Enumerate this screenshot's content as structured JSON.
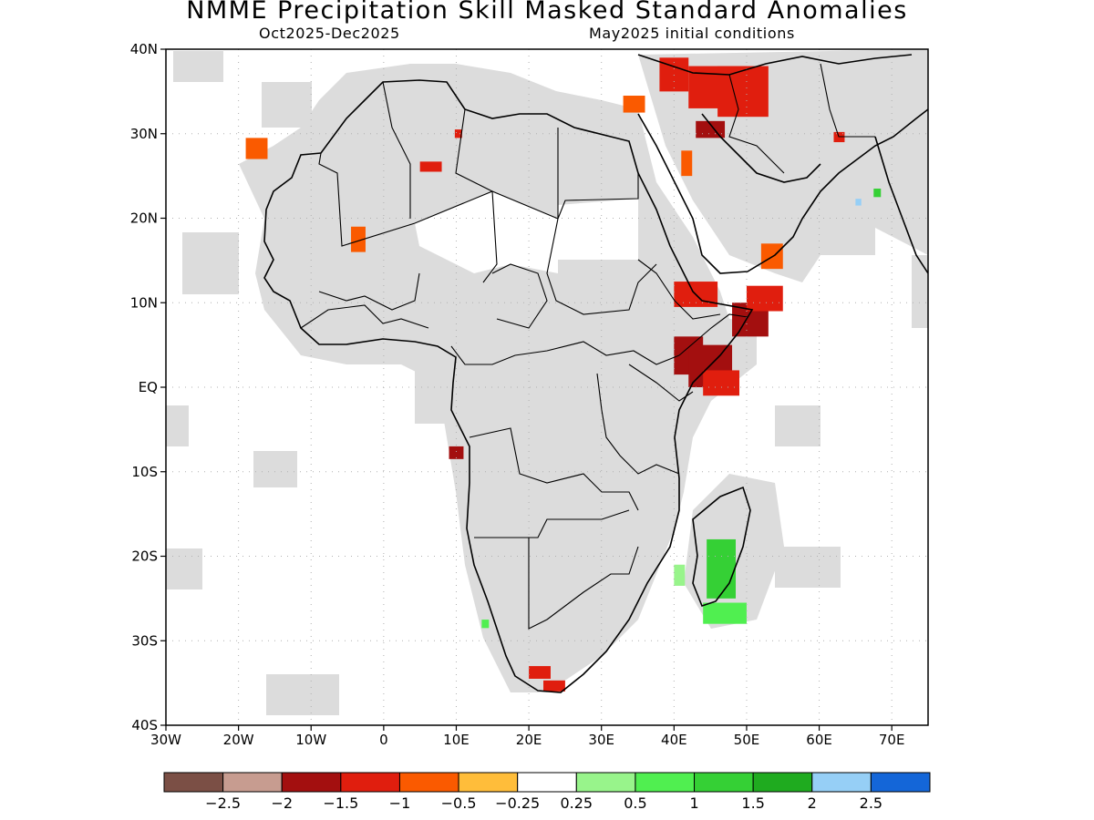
{
  "header": {
    "title": "NMME Precipitation Skill Masked Standard Anomalies",
    "period": "Oct2025-Dec2025",
    "initial_conditions": "May2025 initial conditions"
  },
  "axes": {
    "lon_range": [
      -30,
      75
    ],
    "lat_range": [
      -40,
      40
    ],
    "lon_ticks": [
      {
        "value": -30,
        "label": "30W"
      },
      {
        "value": -20,
        "label": "20W"
      },
      {
        "value": -10,
        "label": "10W"
      },
      {
        "value": 0,
        "label": "0"
      },
      {
        "value": 10,
        "label": "10E"
      },
      {
        "value": 20,
        "label": "20E"
      },
      {
        "value": 30,
        "label": "30E"
      },
      {
        "value": 40,
        "label": "40E"
      },
      {
        "value": 50,
        "label": "50E"
      },
      {
        "value": 60,
        "label": "60E"
      },
      {
        "value": 70,
        "label": "70E"
      }
    ],
    "lat_ticks": [
      {
        "value": 40,
        "label": "40N"
      },
      {
        "value": 30,
        "label": "30N"
      },
      {
        "value": 20,
        "label": "20N"
      },
      {
        "value": 10,
        "label": "10N"
      },
      {
        "value": 0,
        "label": "EQ"
      },
      {
        "value": -10,
        "label": "10S"
      },
      {
        "value": -20,
        "label": "20S"
      },
      {
        "value": -30,
        "label": "30S"
      },
      {
        "value": -40,
        "label": "40S"
      }
    ],
    "grid": true
  },
  "colorbar": {
    "colors": [
      "#7b4f45",
      "#c79c90",
      "#a30f0f",
      "#e01e0e",
      "#fa5a00",
      "#ffbd3a",
      "#ffffff",
      "#98f48b",
      "#50ef50",
      "#35d035",
      "#1fab1f",
      "#96cff6",
      "#1466d8"
    ],
    "labels": [
      "-2.5",
      "-2",
      "-1.5",
      "-1",
      "-0.5",
      "-0.25",
      "0.25",
      "0.5",
      "1",
      "1.5",
      "2",
      "2.5"
    ]
  },
  "map": {
    "land_mask_color": "#dcdcdc",
    "anomaly_patches": [
      {
        "lon": 40,
        "lat": 1.5,
        "w": 4,
        "h": 4.5,
        "value": -1.7
      },
      {
        "lon": 42,
        "lat": 0,
        "w": 6,
        "h": 5,
        "value": -1.8
      },
      {
        "lon": 44,
        "lat": -1,
        "w": 5,
        "h": 3,
        "value": -1.2
      },
      {
        "lon": 48,
        "lat": 6,
        "w": 5,
        "h": 4,
        "value": -1.6
      },
      {
        "lon": 50,
        "lat": 9,
        "w": 5,
        "h": 3,
        "value": -1.2
      },
      {
        "lon": 40,
        "lat": 9.5,
        "w": 6,
        "h": 3,
        "value": -1.3
      },
      {
        "lon": 52,
        "lat": 14,
        "w": 3,
        "h": 3,
        "value": -0.8
      },
      {
        "lon": 42,
        "lat": 33,
        "w": 8,
        "h": 5,
        "value": -1.3
      },
      {
        "lon": 46,
        "lat": 32,
        "w": 7,
        "h": 6,
        "value": -1.2
      },
      {
        "lon": 38,
        "lat": 35,
        "w": 4,
        "h": 4,
        "value": -1.2
      },
      {
        "lon": 33,
        "lat": 32.5,
        "w": 3,
        "h": 2,
        "value": -0.7
      },
      {
        "lon": 43,
        "lat": 29.5,
        "w": 4,
        "h": 2,
        "value": -1.6
      },
      {
        "lon": 41,
        "lat": 25,
        "w": 1.5,
        "h": 3,
        "value": -0.8
      },
      {
        "lon": 5,
        "lat": 25.5,
        "w": 3,
        "h": 1.2,
        "value": -1.2
      },
      {
        "lon": 9.8,
        "lat": 29.5,
        "w": 1,
        "h": 1,
        "value": -1.2
      },
      {
        "lon": -4.5,
        "lat": 16,
        "w": 2,
        "h": 3,
        "value": -0.7
      },
      {
        "lon": -19,
        "lat": 27,
        "w": 3,
        "h": 2.5,
        "value": -0.8
      },
      {
        "lon": 62,
        "lat": 29,
        "w": 1.5,
        "h": 1.2,
        "value": -1.2
      },
      {
        "lon": 9,
        "lat": -8.5,
        "w": 2,
        "h": 1.5,
        "value": -1.6
      },
      {
        "lon": 20,
        "lat": -34.5,
        "w": 3,
        "h": 1.5,
        "value": -1.1
      },
      {
        "lon": 22,
        "lat": -36,
        "w": 3,
        "h": 1.3,
        "value": -1.3
      },
      {
        "lon": 44.5,
        "lat": -25,
        "w": 4,
        "h": 7,
        "value": 1.0
      },
      {
        "lon": 44,
        "lat": -28,
        "w": 6,
        "h": 2.5,
        "value": 0.9
      },
      {
        "lon": 40,
        "lat": -23.5,
        "w": 1.5,
        "h": 2.5,
        "value": 0.4
      },
      {
        "lon": 13.5,
        "lat": -28.5,
        "w": 1,
        "h": 1,
        "value": 0.8
      },
      {
        "lon": 67.5,
        "lat": 22.5,
        "w": 1,
        "h": 1,
        "value": 1.0
      },
      {
        "lon": 65,
        "lat": 21.5,
        "w": 0.8,
        "h": 0.8,
        "value": 2.2
      }
    ]
  }
}
